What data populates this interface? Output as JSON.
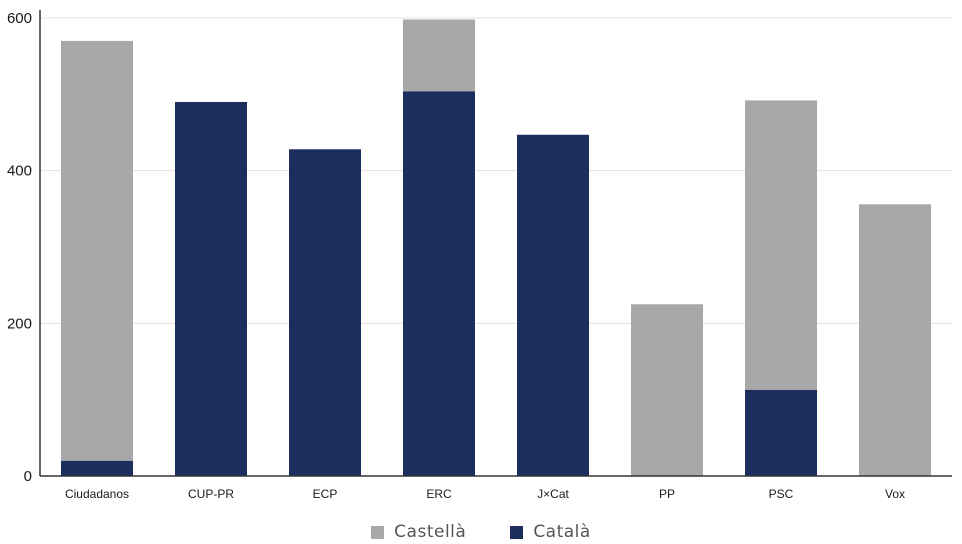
{
  "chart_data": {
    "type": "bar",
    "stacked": true,
    "categories": [
      "Ciudadanos",
      "CUP-PR",
      "ECP",
      "ERC",
      "J×Cat",
      "PP",
      "PSC",
      "Vox"
    ],
    "series": [
      {
        "name": "Català",
        "color": "#1c2d5e",
        "values": [
          20,
          490,
          428,
          504,
          447,
          0,
          113,
          0
        ]
      },
      {
        "name": "Castellà",
        "color": "#a8a8a8",
        "values": [
          550,
          0,
          0,
          94,
          0,
          225,
          379,
          356
        ]
      }
    ],
    "yticks": [
      0,
      200,
      400,
      600
    ],
    "ylim": [
      0,
      600
    ],
    "grid": true,
    "legend": {
      "position": "bottom",
      "order": [
        "Castellà",
        "Català"
      ]
    },
    "title": "",
    "xlabel": "",
    "ylabel": ""
  }
}
